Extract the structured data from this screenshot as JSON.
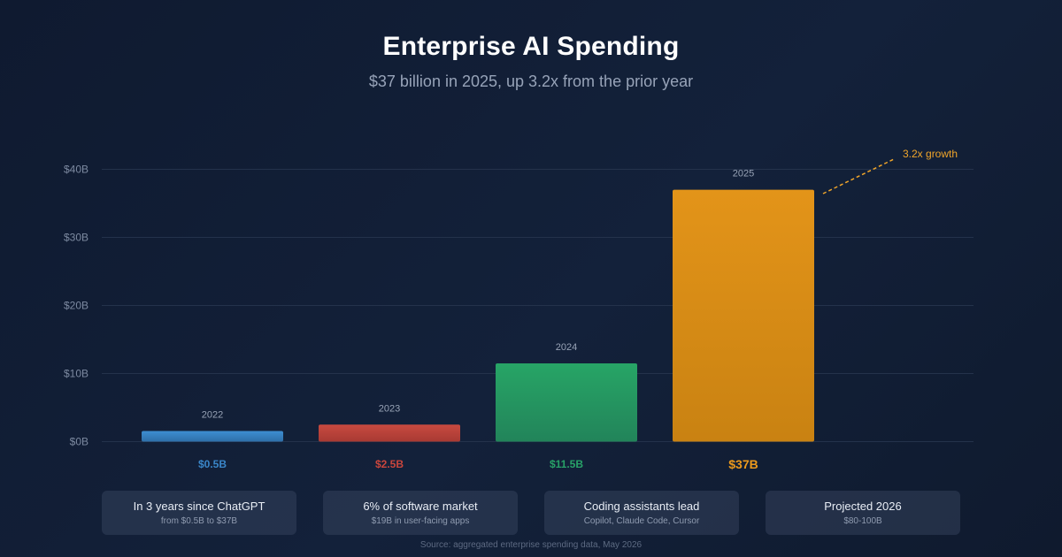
{
  "header": {
    "title": "Enterprise AI Spending",
    "subtitle": "$37 billion in 2025, up 3.2x from the prior year"
  },
  "chart_data": {
    "type": "bar",
    "categories": [
      "2022",
      "2023",
      "2024",
      "2025"
    ],
    "values": [
      0.5,
      2.5,
      11.5,
      37
    ],
    "value_labels": [
      "$0.5B",
      "$2.5B",
      "$11.5B",
      "$37B"
    ],
    "bar_colors": [
      "#3a86c8",
      "#c9463d",
      "#28a268",
      "#ec9a1c"
    ],
    "yticks": [
      0,
      10,
      20,
      30,
      40
    ],
    "ytick_labels": [
      "$0B",
      "$10B",
      "$20B",
      "$30B",
      "$40B"
    ],
    "ylim": [
      0,
      40
    ],
    "grid": true,
    "annotation": "3.2x growth"
  },
  "cards": [
    {
      "title": "In 3 years since ChatGPT",
      "sub": "from $0.5B to $37B"
    },
    {
      "title": "6% of software market",
      "sub": "$19B in user-facing apps"
    },
    {
      "title": "Coding assistants lead",
      "sub": "Copilot, Claude Code, Cursor"
    },
    {
      "title": "Projected 2026",
      "sub": "$80-100B"
    }
  ],
  "footer": {
    "source": "Source: aggregated enterprise spending data, May 2026"
  }
}
